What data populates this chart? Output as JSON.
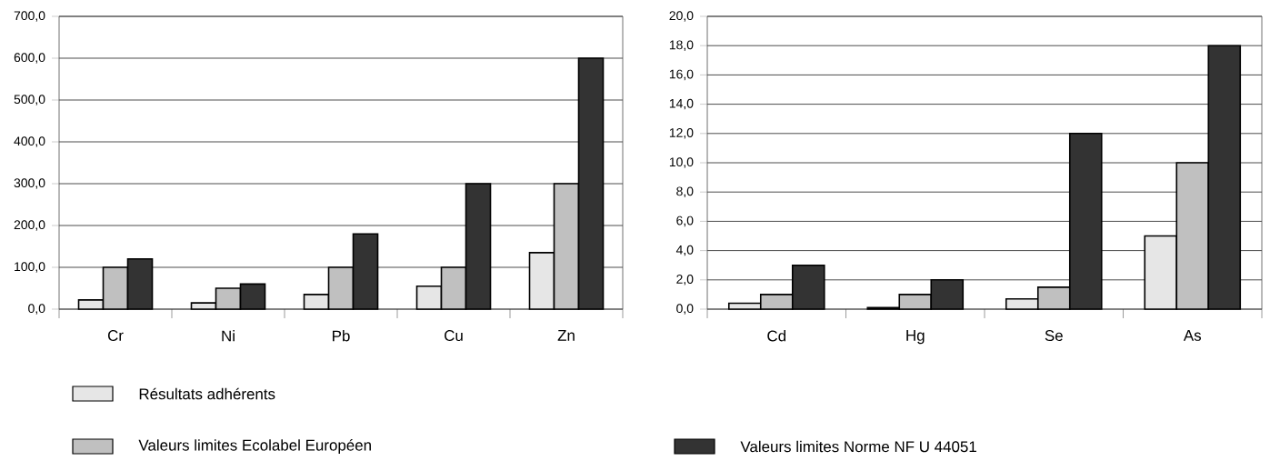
{
  "chart_data": [
    {
      "type": "bar",
      "categories": [
        "Cr",
        "Ni",
        "Pb",
        "Cu",
        "Zn"
      ],
      "series": [
        {
          "name": "Résultats adhérents",
          "color": "#e6e6e6",
          "values": [
            22,
            15,
            35,
            55,
            135
          ]
        },
        {
          "name": "Valeurs limites Ecolabel Européen",
          "color": "#c0c0c0",
          "values": [
            100,
            50,
            100,
            100,
            300
          ]
        },
        {
          "name": "Valeurs limites Norme NF U 44051",
          "color": "#333333",
          "values": [
            120,
            60,
            180,
            300,
            600
          ]
        }
      ],
      "ylim": [
        0,
        700
      ],
      "yticks": [
        {
          "value": 0,
          "label": "0,0"
        },
        {
          "value": 100,
          "label": "100,0"
        },
        {
          "value": 200,
          "label": "200,0"
        },
        {
          "value": 300,
          "label": "300,0"
        },
        {
          "value": 400,
          "label": "400,0"
        },
        {
          "value": 500,
          "label": "500,0"
        },
        {
          "value": 600,
          "label": "600,0"
        },
        {
          "value": 700,
          "label": "700,0"
        }
      ],
      "grid": "y",
      "legend": "bottom"
    },
    {
      "type": "bar",
      "categories": [
        "Cd",
        "Hg",
        "Se",
        "As"
      ],
      "series": [
        {
          "color": "#e6e6e6",
          "values": [
            0.4,
            0.1,
            0.7,
            5
          ]
        },
        {
          "color": "#c0c0c0",
          "values": [
            1,
            1,
            1.5,
            10
          ]
        },
        {
          "color": "#333333",
          "values": [
            3,
            2,
            12,
            18
          ]
        }
      ],
      "ylim": [
        0,
        20
      ],
      "yticks": [
        {
          "value": 0,
          "label": "0,0"
        },
        {
          "value": 2,
          "label": "2,0"
        },
        {
          "value": 4,
          "label": "4,0"
        },
        {
          "value": 6,
          "label": "6,0"
        },
        {
          "value": 8,
          "label": "8,0"
        },
        {
          "value": 10,
          "label": "10,0"
        },
        {
          "value": 12,
          "label": "12,0"
        },
        {
          "value": 14,
          "label": "14,0"
        },
        {
          "value": 16,
          "label": "16,0"
        },
        {
          "value": 18,
          "label": "18,0"
        },
        {
          "value": 20,
          "label": "20,0"
        }
      ],
      "grid": "y"
    }
  ]
}
